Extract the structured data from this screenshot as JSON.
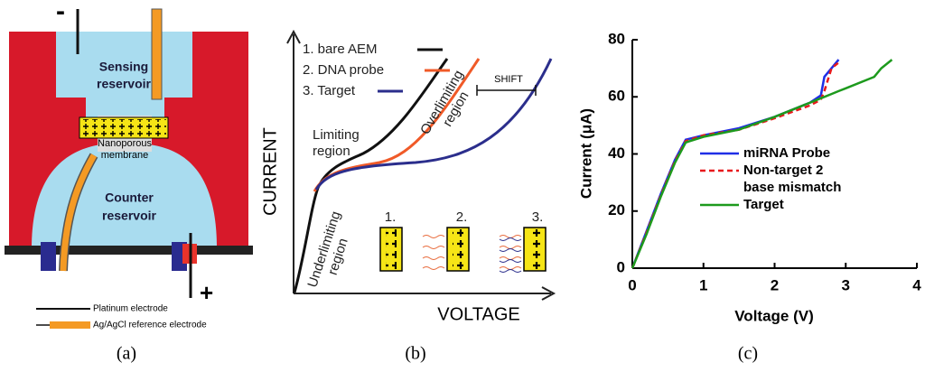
{
  "panel_a": {
    "negative_sign": "-",
    "positive_sign": "+",
    "sensing_reservoir": [
      "Sensing",
      "reservoir"
    ],
    "membrane": [
      "Nanoporous",
      "membrane"
    ],
    "counter_reservoir": [
      "Counter",
      "reservoir"
    ],
    "legend": [
      "Platinum electrode",
      "Ag/AgCl reference electrode"
    ],
    "caption": "(a)"
  },
  "panel_b": {
    "y_label": "CURRENT",
    "x_label": "VOLTAGE",
    "legend": [
      "1. bare AEM",
      "2. DNA probe",
      "3. Target"
    ],
    "limiting": [
      "Limiting",
      "region"
    ],
    "overlimiting": [
      "Overlimiting",
      "region"
    ],
    "underlimiting": [
      "Underlimiting",
      "region"
    ],
    "shift": "SHIFT",
    "boxes": [
      "1.",
      "2.",
      "3."
    ],
    "caption": "(b)"
  },
  "chart_data": {
    "type": "line",
    "x_label": "Voltage (V)",
    "y_label": "Current (μA)",
    "x": [
      0,
      0.2,
      0.4,
      0.6,
      0.75,
      1.0,
      1.5,
      2.0,
      2.5,
      2.65,
      2.7,
      2.8,
      2.9,
      3.0,
      3.4,
      3.5,
      3.65
    ],
    "series": [
      {
        "name": "miRNA Probe",
        "color": "#1f2ee6",
        "dashed": false,
        "values": [
          0,
          13,
          26,
          38,
          45,
          46.5,
          49,
          53,
          58,
          60.5,
          67,
          70,
          73,
          null,
          null,
          null,
          null
        ]
      },
      {
        "name": "Non-target 2 base mismatch",
        "color": "#e8191c",
        "dashed": true,
        "values": [
          0,
          12.5,
          25.5,
          37.5,
          44.5,
          46.5,
          48.5,
          52.5,
          57,
          59,
          62,
          70,
          72,
          null,
          null,
          null,
          null
        ]
      },
      {
        "name": "Target",
        "color": "#1d9a1d",
        "dashed": false,
        "values": [
          0,
          12,
          25,
          37,
          44,
          46,
          48.5,
          53,
          58,
          59.5,
          60,
          61,
          62,
          63,
          67,
          70,
          73
        ]
      }
    ],
    "xlim": [
      0,
      4
    ],
    "xticks": [
      0,
      1,
      2,
      3,
      4
    ],
    "ylim": [
      0,
      80
    ],
    "yticks": [
      0,
      20,
      40,
      60,
      80
    ]
  },
  "panel_c": {
    "caption": "(c)"
  }
}
